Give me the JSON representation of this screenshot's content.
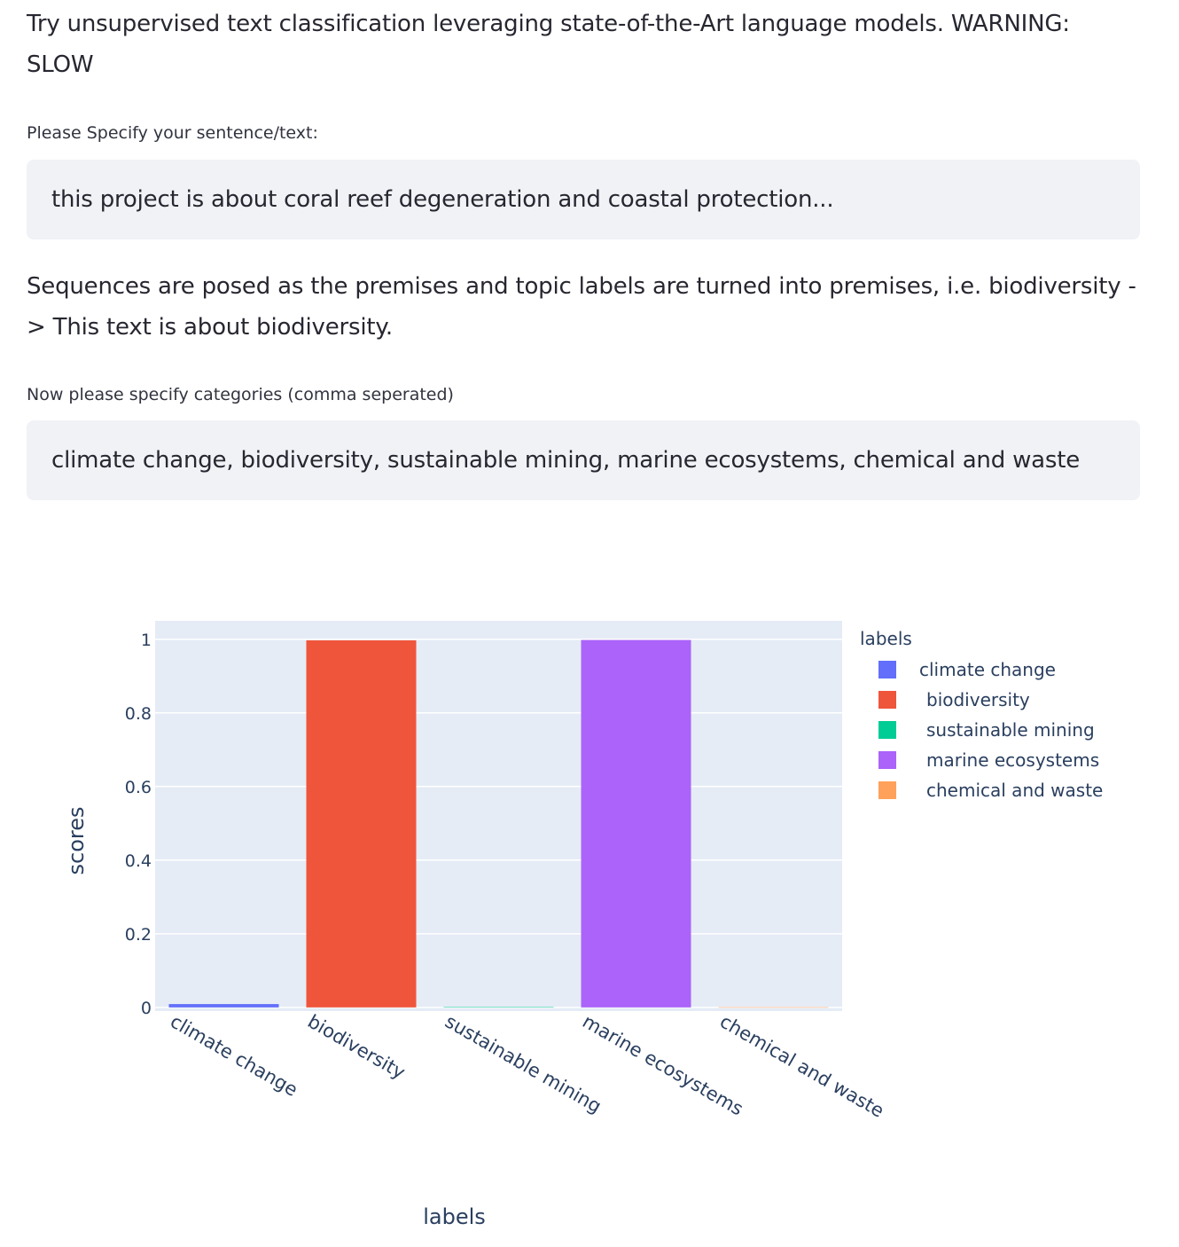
{
  "intro_text": "Try unsupervised text classification leveraging state-of-the-Art language models. WARNING: SLOW",
  "sentence_input": {
    "label": "Please Specify your sentence/text:",
    "value": "this project is about coral reef degeneration and coastal protection..."
  },
  "explanation_text": "Sequences are posed as the premises and topic labels are turned into premises, i.e. biodiversity -> This text is about biodiversity.",
  "categories_input": {
    "label": "Now please specify categories (comma seperated)",
    "value": "climate change, biodiversity, sustainable mining, marine ecosystems, chemical and waste"
  },
  "chart_data": {
    "type": "bar",
    "title": "",
    "xlabel": "labels",
    "ylabel": "scores",
    "legend_title": "labels",
    "legend_position": "top-right",
    "grid": true,
    "ylim": [
      -0.01,
      1.05
    ],
    "yticks": [
      "0",
      "0.2",
      "0.4",
      "0.6",
      "0.8",
      "1"
    ],
    "ytick_values": [
      0,
      0.2,
      0.4,
      0.6,
      0.8,
      1
    ],
    "categories": [
      "climate change",
      "biodiversity",
      "sustainable mining",
      "marine ecosystems",
      "chemical and waste"
    ],
    "values": [
      0.009,
      0.997,
      0.0008,
      0.998,
      0.0005
    ],
    "colors": [
      "#636efa",
      "#ef553b",
      "#00cc96",
      "#ab63fa",
      "#ffa15a"
    ]
  }
}
